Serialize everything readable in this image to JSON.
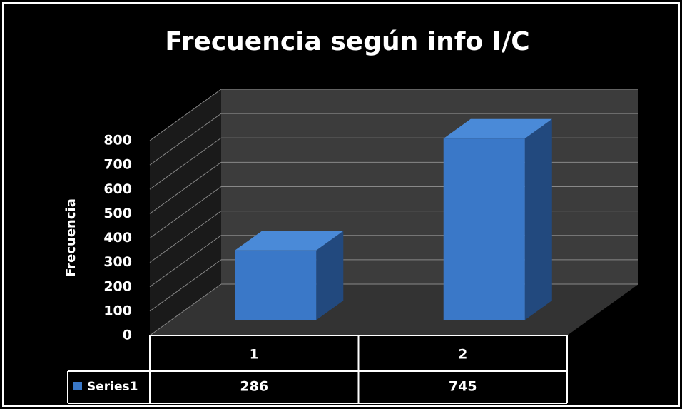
{
  "chart_data": {
    "type": "bar3d",
    "title": "Frecuencia según info I/C",
    "y_label": "Frecuencia",
    "categories": [
      "1",
      "2"
    ],
    "series": [
      {
        "name": "Series1",
        "color": "#3a78c8",
        "values": [
          286,
          745
        ]
      }
    ],
    "ylim": [
      0,
      800
    ],
    "yticks": [
      0,
      100,
      200,
      300,
      400,
      500,
      600,
      700,
      800
    ],
    "grid": true,
    "data_table": true
  }
}
